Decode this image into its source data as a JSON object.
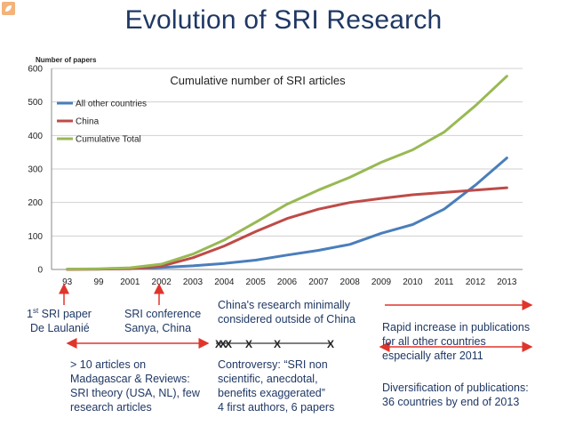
{
  "slide": {
    "title": "Evolution of SRI Research",
    "logo_icon": "sri-logo-icon"
  },
  "chart_data": {
    "type": "line",
    "title": "Cumulative number of SRI articles",
    "ylabel": "Number of papers",
    "xlabel": "",
    "categories": [
      "93",
      "99",
      "2001",
      "2002",
      "2003",
      "2004",
      "2005",
      "2006",
      "2007",
      "2008",
      "2009",
      "2010",
      "2011",
      "2012",
      "2013"
    ],
    "ylim": [
      0,
      600
    ],
    "yticks": [
      0,
      100,
      200,
      300,
      400,
      500,
      600
    ],
    "grid": true,
    "legend_position": "top-left",
    "series": [
      {
        "name": "All other countries",
        "color": "#4a7ebb",
        "values": [
          1,
          1,
          3,
          6,
          11,
          18,
          28,
          43,
          57,
          75,
          108,
          134,
          180,
          252,
          333
        ]
      },
      {
        "name": "China",
        "color": "#be4b48",
        "values": [
          0,
          1,
          2,
          10,
          35,
          70,
          113,
          152,
          180,
          200,
          212,
          223,
          230,
          237,
          244
        ]
      },
      {
        "name": "Cumulative Total",
        "color": "#98b954",
        "values": [
          1,
          2,
          5,
          16,
          46,
          88,
          141,
          195,
          237,
          275,
          320,
          357,
          410,
          489,
          577
        ]
      }
    ]
  },
  "annotations": {
    "first_paper_sup": "st",
    "first_paper_line1": "1",
    "first_paper_line1_rest": " SRI paper",
    "first_paper_line2": "De Laulanié",
    "conference_line1": "SRI conference",
    "conference_line2": "Sanya, China",
    "ten_articles": [
      "> 10 articles on",
      "Madagascar & Reviews:",
      "SRI theory (USA, NL), few",
      "research articles"
    ],
    "china_minimal": [
      "China's research minimally",
      "considered outside of China"
    ],
    "controversy": [
      "Controversy: “SRI non",
      "scientific, anecdotal,",
      "benefits exaggerated”",
      "4 first authors, 6 papers"
    ],
    "rapid_increase": [
      "Rapid increase in publications",
      "for all other countries",
      "especially after 2011"
    ],
    "diversification": [
      "Diversification of publications:",
      "36 countries by end of 2013"
    ],
    "cross_mark": "X",
    "arrow_color": "#e0352b"
  }
}
